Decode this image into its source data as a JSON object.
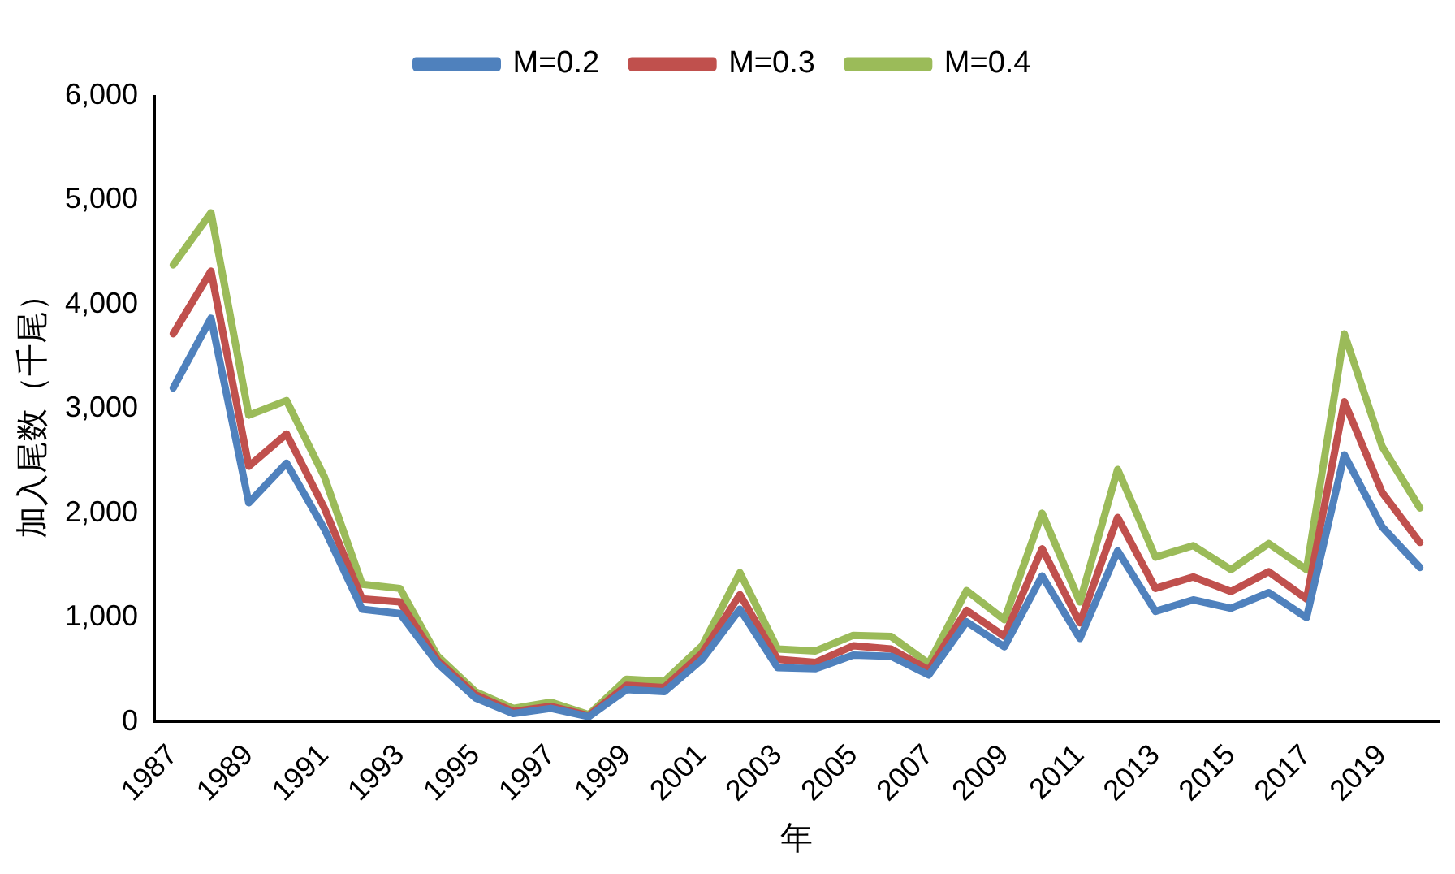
{
  "chart_data": {
    "type": "line",
    "xlabel": "年",
    "ylabel": "加入尾数（千尾）",
    "categories": [
      "1987",
      null,
      "1989",
      null,
      "1991",
      null,
      "1993",
      null,
      "1995",
      null,
      "1997",
      null,
      "1999",
      null,
      "2001",
      null,
      "2003",
      null,
      "2005",
      null,
      "2007",
      null,
      "2009",
      null,
      "2011",
      null,
      "2013",
      null,
      "2015",
      null,
      "2017",
      null,
      "2019",
      null
    ],
    "series": [
      {
        "name": "M=0.2",
        "color": "#4f81bd",
        "values": [
          3200,
          3870,
          2100,
          2480,
          1850,
          1080,
          1040,
          560,
          230,
          80,
          130,
          50,
          310,
          290,
          600,
          1080,
          520,
          510,
          640,
          630,
          450,
          960,
          720,
          1400,
          800,
          1640,
          1060,
          1170,
          1090,
          1240,
          1000,
          2560,
          1870,
          1480
        ]
      },
      {
        "name": "M=0.3",
        "color": "#c0504d",
        "values": [
          3720,
          4320,
          2450,
          2760,
          2050,
          1180,
          1150,
          590,
          260,
          100,
          150,
          60,
          350,
          330,
          660,
          1220,
          600,
          570,
          730,
          700,
          500,
          1070,
          820,
          1660,
          950,
          1960,
          1280,
          1390,
          1250,
          1440,
          1180,
          3070,
          2200,
          1720
        ]
      },
      {
        "name": "M=0.4",
        "color": "#9bbb59",
        "values": [
          4380,
          4880,
          2940,
          3080,
          2350,
          1320,
          1280,
          630,
          290,
          130,
          190,
          70,
          410,
          390,
          730,
          1430,
          700,
          680,
          830,
          820,
          560,
          1260,
          980,
          2000,
          1150,
          2420,
          1580,
          1690,
          1460,
          1710,
          1460,
          3720,
          2640,
          2050
        ]
      }
    ],
    "ylim": [
      0,
      6000
    ],
    "yticks": [
      0,
      {
        "value": 1000,
        "label": "1,000"
      },
      {
        "value": 2000,
        "label": "2,000"
      },
      {
        "value": 3000,
        "label": "3,000"
      },
      {
        "value": 4000,
        "label": "4,000"
      },
      {
        "value": 5000,
        "label": "5,000"
      },
      {
        "value": 6000,
        "label": "6,000"
      }
    ],
    "grid": false,
    "legend": "top",
    "marker": "none",
    "line_style": "solid"
  }
}
